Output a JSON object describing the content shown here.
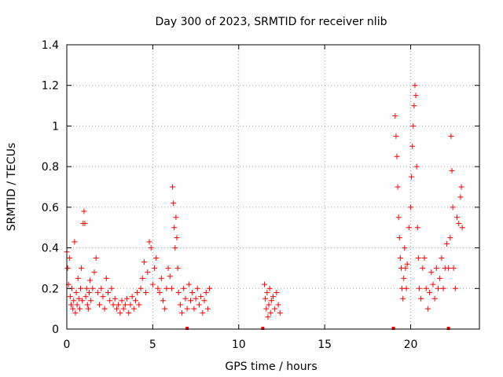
{
  "chart_data": {
    "type": "scatter",
    "title": "Day 300 of 2023, SRMTID for receiver nlib",
    "xlabel": "GPS time / hours",
    "ylabel": "SRMTID / TECUs",
    "xlim": [
      0,
      24
    ],
    "ylim": [
      0,
      1.4
    ],
    "xticks": [
      0,
      5,
      10,
      15,
      20
    ],
    "xtick_labels": [
      "0",
      "5",
      "10",
      "15",
      "20"
    ],
    "yticks": [
      0,
      0.2,
      0.4,
      0.6,
      0.8,
      1,
      1.2,
      1.4
    ],
    "ytick_labels": [
      "0",
      "0.2",
      "0.4",
      "0.6",
      "0.8",
      "1",
      "1.2",
      "1.4"
    ],
    "grid": true,
    "marker": "+",
    "color": "#ff0000",
    "series": [
      {
        "name": "SRMTID",
        "points": [
          [
            0.0,
            0.38
          ],
          [
            0.05,
            0.3
          ],
          [
            0.1,
            0.22
          ],
          [
            0.15,
            0.35
          ],
          [
            0.2,
            0.16
          ],
          [
            0.25,
            0.12
          ],
          [
            0.3,
            0.2
          ],
          [
            0.35,
            0.1
          ],
          [
            0.4,
            0.14
          ],
          [
            0.45,
            0.43
          ],
          [
            0.5,
            0.08
          ],
          [
            0.55,
            0.18
          ],
          [
            0.6,
            0.12
          ],
          [
            0.65,
            0.25
          ],
          [
            0.7,
            0.15
          ],
          [
            0.75,
            0.1
          ],
          [
            0.8,
            0.2
          ],
          [
            0.85,
            0.3
          ],
          [
            0.9,
            0.14
          ],
          [
            0.95,
            0.52
          ],
          [
            1.0,
            0.58
          ],
          [
            1.05,
            0.52
          ],
          [
            1.1,
            0.16
          ],
          [
            1.15,
            0.2
          ],
          [
            1.2,
            0.12
          ],
          [
            1.25,
            0.1
          ],
          [
            1.3,
            0.18
          ],
          [
            1.35,
            0.24
          ],
          [
            1.4,
            0.14
          ],
          [
            1.5,
            0.2
          ],
          [
            1.6,
            0.28
          ],
          [
            1.7,
            0.35
          ],
          [
            1.8,
            0.18
          ],
          [
            1.9,
            0.12
          ],
          [
            2.0,
            0.2
          ],
          [
            2.1,
            0.16
          ],
          [
            2.2,
            0.1
          ],
          [
            2.3,
            0.25
          ],
          [
            2.4,
            0.18
          ],
          [
            2.5,
            0.14
          ],
          [
            2.6,
            0.2
          ],
          [
            2.7,
            0.12
          ],
          [
            2.8,
            0.15
          ],
          [
            2.9,
            0.1
          ],
          [
            3.0,
            0.12
          ],
          [
            3.1,
            0.08
          ],
          [
            3.2,
            0.14
          ],
          [
            3.3,
            0.1
          ],
          [
            3.4,
            0.12
          ],
          [
            3.5,
            0.15
          ],
          [
            3.6,
            0.08
          ],
          [
            3.7,
            0.12
          ],
          [
            3.8,
            0.16
          ],
          [
            3.9,
            0.1
          ],
          [
            4.0,
            0.14
          ],
          [
            4.1,
            0.18
          ],
          [
            4.2,
            0.12
          ],
          [
            4.3,
            0.2
          ],
          [
            4.4,
            0.25
          ],
          [
            4.5,
            0.33
          ],
          [
            4.6,
            0.18
          ],
          [
            4.7,
            0.28
          ],
          [
            4.8,
            0.43
          ],
          [
            4.9,
            0.4
          ],
          [
            5.0,
            0.22
          ],
          [
            5.1,
            0.3
          ],
          [
            5.2,
            0.35
          ],
          [
            5.3,
            0.2
          ],
          [
            5.4,
            0.18
          ],
          [
            5.5,
            0.25
          ],
          [
            5.6,
            0.14
          ],
          [
            5.7,
            0.1
          ],
          [
            5.8,
            0.2
          ],
          [
            5.9,
            0.3
          ],
          [
            6.0,
            0.26
          ],
          [
            6.1,
            0.2
          ],
          [
            6.15,
            0.7
          ],
          [
            6.2,
            0.62
          ],
          [
            6.25,
            0.5
          ],
          [
            6.3,
            0.4
          ],
          [
            6.35,
            0.55
          ],
          [
            6.4,
            0.45
          ],
          [
            6.45,
            0.3
          ],
          [
            6.5,
            0.18
          ],
          [
            6.6,
            0.12
          ],
          [
            6.7,
            0.08
          ],
          [
            6.8,
            0.2
          ],
          [
            6.9,
            0.15
          ],
          [
            7.0,
            0.1
          ],
          [
            7.1,
            0.22
          ],
          [
            7.2,
            0.14
          ],
          [
            7.3,
            0.18
          ],
          [
            7.4,
            0.1
          ],
          [
            7.5,
            0.15
          ],
          [
            7.6,
            0.2
          ],
          [
            7.7,
            0.12
          ],
          [
            7.8,
            0.16
          ],
          [
            7.9,
            0.08
          ],
          [
            8.0,
            0.14
          ],
          [
            8.1,
            0.18
          ],
          [
            8.2,
            0.1
          ],
          [
            8.3,
            0.2
          ],
          [
            11.5,
            0.22
          ],
          [
            11.55,
            0.15
          ],
          [
            11.6,
            0.1
          ],
          [
            11.65,
            0.18
          ],
          [
            11.7,
            0.06
          ],
          [
            11.75,
            0.12
          ],
          [
            11.8,
            0.2
          ],
          [
            11.85,
            0.08
          ],
          [
            11.9,
            0.14
          ],
          [
            12.0,
            0.16
          ],
          [
            12.1,
            0.1
          ],
          [
            12.2,
            0.18
          ],
          [
            12.3,
            0.12
          ],
          [
            12.4,
            0.08
          ],
          [
            19.1,
            1.05
          ],
          [
            19.15,
            0.95
          ],
          [
            19.2,
            0.85
          ],
          [
            19.25,
            0.7
          ],
          [
            19.3,
            0.55
          ],
          [
            19.35,
            0.45
          ],
          [
            19.4,
            0.35
          ],
          [
            19.45,
            0.3
          ],
          [
            19.5,
            0.2
          ],
          [
            19.55,
            0.15
          ],
          [
            19.6,
            0.25
          ],
          [
            19.65,
            0.4
          ],
          [
            19.7,
            0.3
          ],
          [
            19.75,
            0.2
          ],
          [
            19.8,
            0.32
          ],
          [
            19.9,
            0.5
          ],
          [
            20.0,
            0.6
          ],
          [
            20.05,
            0.75
          ],
          [
            20.1,
            0.9
          ],
          [
            20.15,
            1.0
          ],
          [
            20.2,
            1.1
          ],
          [
            20.25,
            1.2
          ],
          [
            20.3,
            1.15
          ],
          [
            20.35,
            0.8
          ],
          [
            20.4,
            0.5
          ],
          [
            20.45,
            0.35
          ],
          [
            20.5,
            0.2
          ],
          [
            20.6,
            0.15
          ],
          [
            20.7,
            0.3
          ],
          [
            20.8,
            0.35
          ],
          [
            20.9,
            0.2
          ],
          [
            21.0,
            0.1
          ],
          [
            21.1,
            0.18
          ],
          [
            21.2,
            0.28
          ],
          [
            21.3,
            0.22
          ],
          [
            21.4,
            0.15
          ],
          [
            21.5,
            0.3
          ],
          [
            21.6,
            0.2
          ],
          [
            21.7,
            0.25
          ],
          [
            21.8,
            0.35
          ],
          [
            21.9,
            0.2
          ],
          [
            22.0,
            0.3
          ],
          [
            22.1,
            0.42
          ],
          [
            22.2,
            0.3
          ],
          [
            22.3,
            0.45
          ],
          [
            22.35,
            0.95
          ],
          [
            22.4,
            0.78
          ],
          [
            22.45,
            0.6
          ],
          [
            22.5,
            0.3
          ],
          [
            22.6,
            0.2
          ],
          [
            22.7,
            0.55
          ],
          [
            22.8,
            0.52
          ],
          [
            22.9,
            0.65
          ],
          [
            22.95,
            0.7
          ],
          [
            23.0,
            0.5
          ]
        ]
      }
    ],
    "gap_markers_x": [
      7.0,
      11.4,
      19.0,
      22.2
    ]
  }
}
